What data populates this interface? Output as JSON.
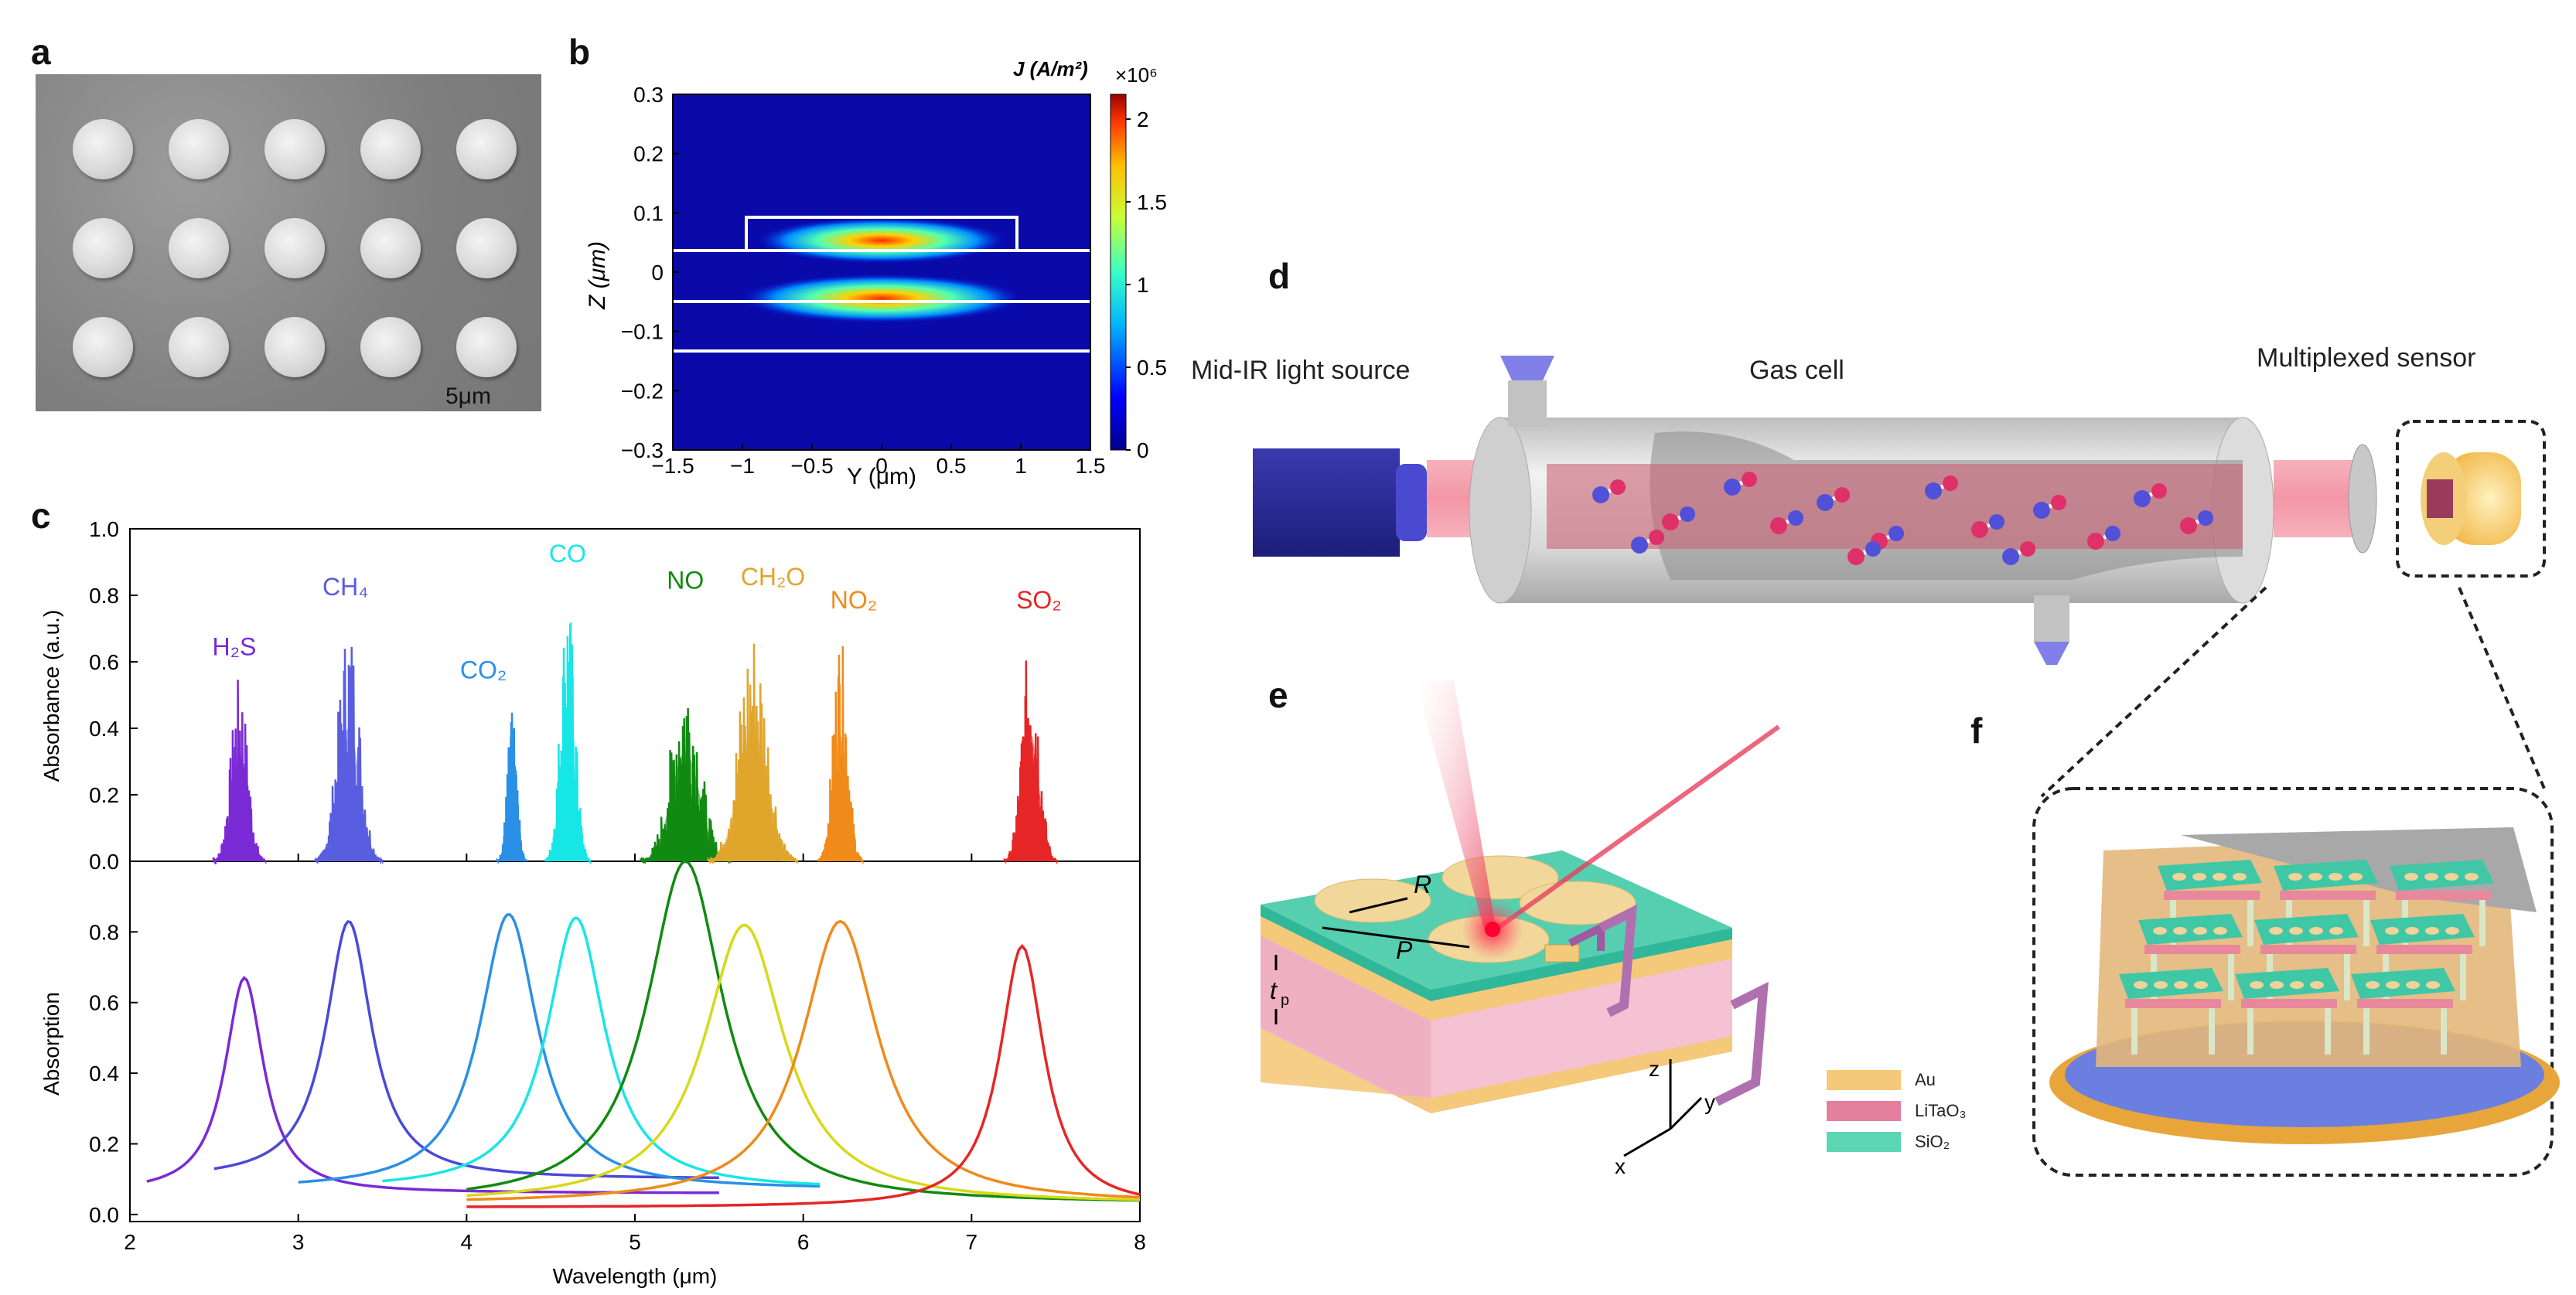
{
  "panels": {
    "a": "a",
    "b": "b",
    "c": "c",
    "d": "d",
    "e": "e",
    "f": "f"
  },
  "panel_a": {
    "scale_bar": "5μm"
  },
  "panel_b": {
    "colorbar_title": "J (A/m²)",
    "colorbar_multiplier": "×10⁶",
    "colorbar_ticks": [
      "2",
      "1.5",
      "1",
      "0.5",
      "0"
    ],
    "y_ticks": [
      "0.3",
      "0.2",
      "0.1",
      "0",
      "−0.1",
      "−0.2",
      "−0.3"
    ],
    "x_ticks": [
      "−1.5",
      "−1",
      "−0.5",
      "0",
      "0.5",
      "1",
      "1.5"
    ],
    "xlabel": "Y (μm)",
    "ylabel": "Z (μm)"
  },
  "panel_d": {
    "source_label": "Mid-IR light source",
    "cell_label": "Gas cell",
    "sensor_label": "Multiplexed sensor"
  },
  "panel_e": {
    "labels": {
      "R": "R",
      "P": "P",
      "tp": "t",
      "tp_sub": "p",
      "z": "z",
      "x": "x",
      "y": "y"
    },
    "legend": [
      {
        "name": "Au",
        "color": "#f5c97a"
      },
      {
        "name": "LiTaO₃",
        "color": "#e47fa0"
      },
      {
        "name": "SiO₂",
        "color": "#5dd6b4"
      }
    ]
  },
  "chart_data": {
    "type": "line",
    "xlabel": "Wavelength (μm)",
    "x_ticks": [
      "2",
      "3",
      "4",
      "5",
      "6",
      "7",
      "8"
    ],
    "xlim": [
      2,
      8
    ],
    "top": {
      "ylabel": "Absorbance (a.u.)",
      "ylim": [
        0,
        1.0
      ],
      "y_ticks": [
        "1.0",
        "0.8",
        "0.6",
        "0.4",
        "0.2",
        "0.0"
      ],
      "gases": [
        {
          "name": "H₂S",
          "center": 2.65,
          "peak": 0.56,
          "width": 0.07,
          "color": "#7a2ad6",
          "label_x": 2.62,
          "label_y": 0.62
        },
        {
          "name": "CH₄",
          "center": 3.3,
          "peak": 0.73,
          "width": 0.09,
          "color": "#5a5de0",
          "label_x": 3.28,
          "label_y": 0.8
        },
        {
          "name": "CO₂",
          "center": 4.27,
          "peak": 0.45,
          "width": 0.04,
          "color": "#2a8fe6",
          "label_x": 4.1,
          "label_y": 0.55
        },
        {
          "name": "CO",
          "center": 4.6,
          "peak": 0.82,
          "width": 0.06,
          "color": "#18e6e6",
          "label_x": 4.6,
          "label_y": 0.9
        },
        {
          "name": "NO",
          "center": 5.3,
          "peak": 0.6,
          "width": 0.12,
          "color": "#118a11",
          "label_x": 5.3,
          "label_y": 0.82
        },
        {
          "name": "CH₂O",
          "center": 5.7,
          "peak": 0.72,
          "width": 0.12,
          "color": "#e0a52b",
          "label_x": 5.82,
          "label_y": 0.83
        },
        {
          "name": "NO₂",
          "center": 6.22,
          "peak": 0.69,
          "width": 0.06,
          "color": "#f08a1a",
          "label_x": 6.3,
          "label_y": 0.76
        },
        {
          "name": "SO₂",
          "center": 7.35,
          "peak": 0.7,
          "width": 0.07,
          "color": "#e62626",
          "label_x": 7.4,
          "label_y": 0.76
        }
      ]
    },
    "bottom": {
      "ylabel": "Absorption",
      "ylim": [
        -0.02,
        1.0
      ],
      "y_ticks": [
        "0.8",
        "0.6",
        "0.4",
        "0.2",
        "0.0"
      ],
      "series": [
        {
          "center": 2.68,
          "peak": 0.67,
          "width": 0.28,
          "color": "#7a2ad6",
          "xmin": 2.1,
          "xmax": 5.5,
          "base": 0.06
        },
        {
          "center": 3.3,
          "peak": 0.83,
          "width": 0.33,
          "color": "#4a4ad8",
          "xmin": 2.5,
          "xmax": 5.5,
          "base": 0.1
        },
        {
          "center": 4.25,
          "peak": 0.85,
          "width": 0.42,
          "color": "#2a8fe6",
          "xmin": 3.0,
          "xmax": 6.1,
          "base": 0.07
        },
        {
          "center": 4.65,
          "peak": 0.84,
          "width": 0.42,
          "color": "#18e6e6",
          "xmin": 3.5,
          "xmax": 6.1,
          "base": 0.07
        },
        {
          "center": 5.3,
          "peak": 1.0,
          "width": 0.55,
          "color": "#118a11",
          "xmin": 4.0,
          "xmax": 8.0,
          "base": 0.03
        },
        {
          "center": 5.65,
          "peak": 0.82,
          "width": 0.58,
          "color": "#d8d81a",
          "xmin": 4.0,
          "xmax": 8.0,
          "base": 0.03
        },
        {
          "center": 6.22,
          "peak": 0.83,
          "width": 0.55,
          "color": "#f08a1a",
          "xmin": 4.0,
          "xmax": 8.0,
          "base": 0.03
        },
        {
          "center": 7.3,
          "peak": 0.76,
          "width": 0.32,
          "color": "#e62626",
          "xmin": 4.0,
          "xmax": 8.0,
          "base": 0.02
        }
      ]
    }
  }
}
